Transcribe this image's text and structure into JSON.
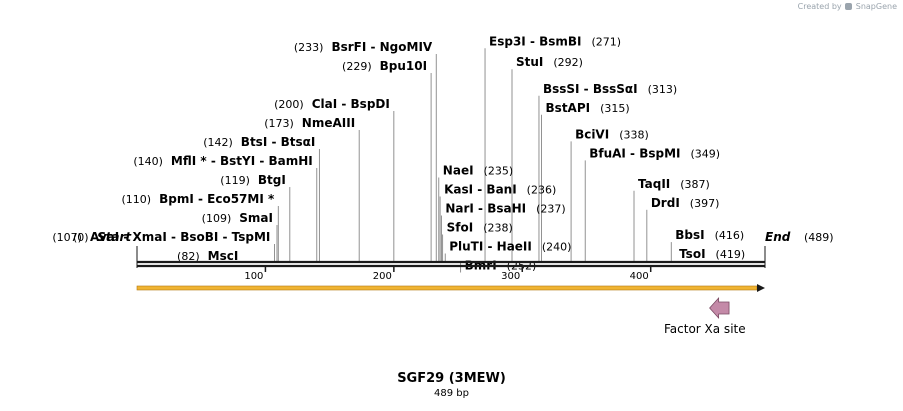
{
  "watermark": {
    "prefix": "Created by",
    "brand": "SnapGene"
  },
  "title": "SGF29 (3MEW)",
  "subtitle": "489 bp",
  "sequence_length": 489,
  "ruler": {
    "ticks": [
      "100",
      "200",
      "300",
      "400"
    ]
  },
  "ends": {
    "start_label": "Start",
    "start_pos": "(0)",
    "end_label": "End",
    "end_pos": "(489)"
  },
  "feature": {
    "label": "Factor Xa site",
    "start": 449,
    "end": 461,
    "color": "#c48aa8"
  },
  "colors": {
    "backbone": "#1a1a1a",
    "orf": "#f0b432",
    "leader": "#777777"
  },
  "sites": [
    {
      "pos": 107,
      "row": 10,
      "text": "AvaI  - XmaI  - BsoBI  - TspMI",
      "num": "(107)",
      "side": "left"
    },
    {
      "pos": 110,
      "row": 8,
      "text": "BpmI  - Eco57MI *",
      "num": "(110)",
      "side": "left"
    },
    {
      "pos": 109,
      "row": 9,
      "text": "SmaI",
      "num": "(109)",
      "side": "left"
    },
    {
      "pos": 119,
      "row": 7,
      "text": "BtgI",
      "num": "(119)",
      "side": "left"
    },
    {
      "pos": 142,
      "row": 5,
      "text": "BtsI  - BtsαI",
      "num": "(142)",
      "side": "left"
    },
    {
      "pos": 140,
      "row": 6,
      "text": "MflI * - BstYI  - BamHI",
      "num": "(140)",
      "side": "left"
    },
    {
      "pos": 173,
      "row": 4,
      "text": "NmeAIII",
      "num": "(173)",
      "side": "left"
    },
    {
      "pos": 200,
      "row": 3,
      "text": "ClaI  - BspDI",
      "num": "(200)",
      "side": "left"
    },
    {
      "pos": 229,
      "row": 1,
      "text": "Bpu10I",
      "num": "(229)",
      "side": "left"
    },
    {
      "pos": 233,
      "row": 0,
      "text": "BsrFI  - NgoMIV",
      "num": "(233)",
      "side": "left"
    },
    {
      "pos": 82,
      "row": 11,
      "text": "MscI",
      "num": "(82)",
      "side": "left"
    },
    {
      "pos": 235,
      "row": 6.5,
      "text": "NaeI",
      "num": "(235)",
      "side": "right"
    },
    {
      "pos": 236,
      "row": 7.5,
      "text": "KasI  - BanI",
      "num": "(236)",
      "side": "right"
    },
    {
      "pos": 237,
      "row": 8.5,
      "text": "NarI  - BsaHI",
      "num": "(237)",
      "side": "right"
    },
    {
      "pos": 238,
      "row": 9.5,
      "text": "SfoI",
      "num": "(238)",
      "side": "right"
    },
    {
      "pos": 240,
      "row": 10.5,
      "text": "PluTI  - HaeII",
      "num": "(240)",
      "side": "right"
    },
    {
      "pos": 252,
      "row": 11.5,
      "text": "BmrI",
      "num": "(252)",
      "side": "right"
    },
    {
      "pos": 271,
      "row": -0.3,
      "text": "Esp3I  - BsmBI",
      "num": "(271)",
      "side": "right"
    },
    {
      "pos": 292,
      "row": 0.8,
      "text": "StuI",
      "num": "(292)",
      "side": "right"
    },
    {
      "pos": 313,
      "row": 2.2,
      "text": "BssSI  - BssSαI",
      "num": "(313)",
      "side": "right"
    },
    {
      "pos": 315,
      "row": 3.2,
      "text": "BstAPI",
      "num": "(315)",
      "side": "right"
    },
    {
      "pos": 338,
      "row": 4.6,
      "text": "BciVI",
      "num": "(338)",
      "side": "right"
    },
    {
      "pos": 349,
      "row": 5.6,
      "text": "BfuAI  - BspMI",
      "num": "(349)",
      "side": "right"
    },
    {
      "pos": 387,
      "row": 7.2,
      "text": "TaqII",
      "num": "(387)",
      "side": "right"
    },
    {
      "pos": 397,
      "row": 8.2,
      "text": "DrdI",
      "num": "(397)",
      "side": "right"
    },
    {
      "pos": 416,
      "row": 9.9,
      "text": "BbsI",
      "num": "(416)",
      "side": "right"
    },
    {
      "pos": 419,
      "row": 10.9,
      "text": "TsoI",
      "num": "(419)",
      "side": "right"
    }
  ]
}
